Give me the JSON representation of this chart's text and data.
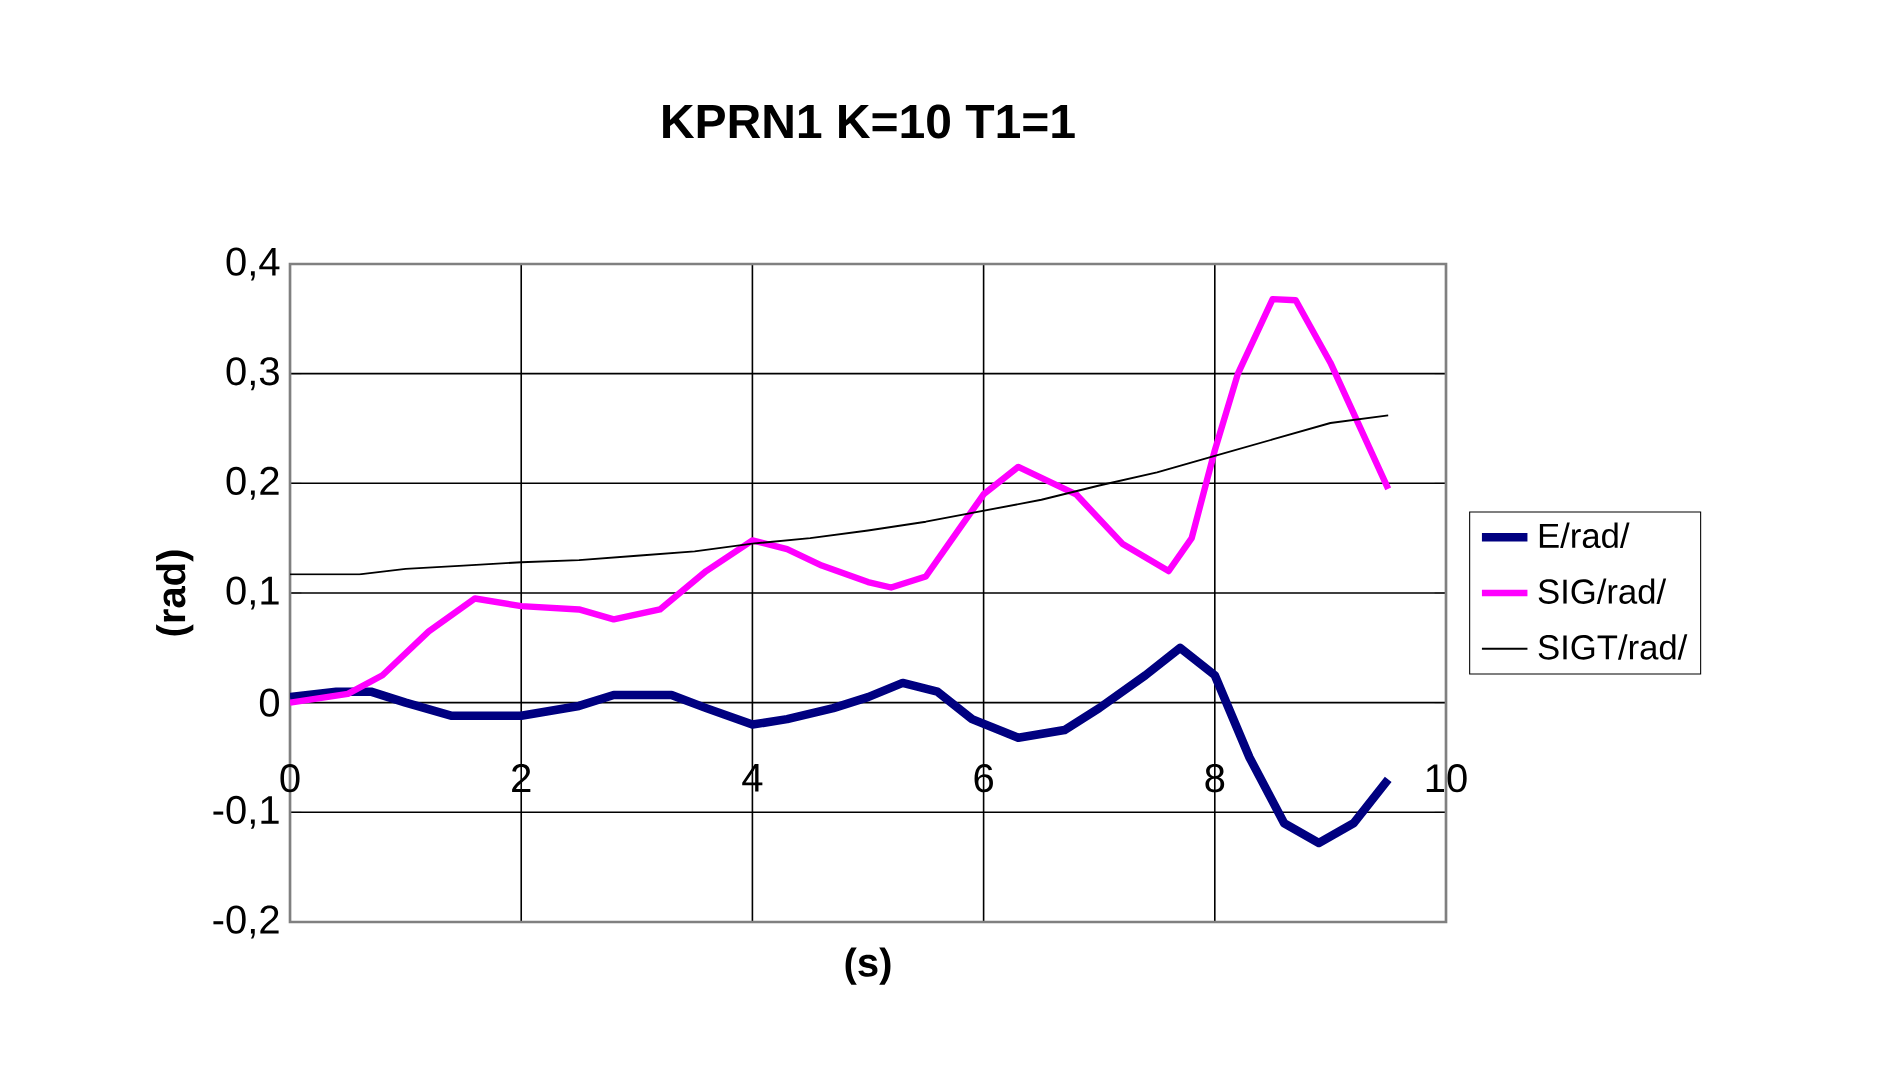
{
  "chart_data": {
    "type": "line",
    "title": "KPRN1 K=10 T1=1",
    "xlabel": "(s)",
    "ylabel": "(rad)",
    "xlim": [
      0,
      10
    ],
    "ylim": [
      -0.2,
      0.4
    ],
    "xticks": [
      0,
      2,
      4,
      6,
      8,
      10
    ],
    "yticks": [
      {
        "value": -0.2,
        "label": "-0,2"
      },
      {
        "value": -0.1,
        "label": "-0,1"
      },
      0,
      {
        "value": 0.1,
        "label": "0,1"
      },
      {
        "value": 0.2,
        "label": "0,2"
      },
      {
        "value": 0.3,
        "label": "0,3"
      },
      {
        "value": 0.4,
        "label": "0,4"
      }
    ],
    "grid": true,
    "legend": "right",
    "marker": "none",
    "line_style": "solid",
    "series": [
      {
        "name": "E/rad/",
        "color": "#000080",
        "x": [
          0,
          0.4,
          0.7,
          1.0,
          1.4,
          2.0,
          2.5,
          2.8,
          3.3,
          3.6,
          4.0,
          4.3,
          4.7,
          5.0,
          5.3,
          5.6,
          5.9,
          6.3,
          6.7,
          7.0,
          7.4,
          7.7,
          8.0,
          8.3,
          8.6,
          8.9,
          9.2,
          9.5
        ],
        "values": [
          0.005,
          0.01,
          0.01,
          0,
          -0.012,
          -0.012,
          -0.003,
          0.007,
          0.007,
          -0.005,
          -0.02,
          -0.015,
          -0.005,
          0.005,
          0.018,
          0.01,
          -0.015,
          -0.032,
          -0.025,
          -0.005,
          0.025,
          0.05,
          0.025,
          -0.05,
          -0.11,
          -0.128,
          -0.11,
          -0.07
        ]
      },
      {
        "name": "SIG/rad/",
        "color": "#ff00ff",
        "x": [
          0,
          0.5,
          0.8,
          1.2,
          1.6,
          2.0,
          2.5,
          2.8,
          3.2,
          3.6,
          4.0,
          4.3,
          4.6,
          5.0,
          5.2,
          5.5,
          5.8,
          6.0,
          6.3,
          6.8,
          7.2,
          7.6,
          7.8,
          8.0,
          8.2,
          8.5,
          8.7,
          9.0,
          9.5
        ],
        "values": [
          0,
          0.008,
          0.025,
          0.065,
          0.095,
          0.088,
          0.085,
          0.076,
          0.085,
          0.12,
          0.148,
          0.14,
          0.125,
          0.11,
          0.105,
          0.115,
          0.16,
          0.19,
          0.215,
          0.19,
          0.145,
          0.12,
          0.15,
          0.23,
          0.3,
          0.368,
          0.367,
          0.31,
          0.195
        ]
      },
      {
        "name": "SIGT/rad/",
        "color": "#000000",
        "x": [
          0,
          0.6,
          1.0,
          1.5,
          2.0,
          2.5,
          3.0,
          3.5,
          4.0,
          4.5,
          5.0,
          5.5,
          6.0,
          6.5,
          7.0,
          7.5,
          8.0,
          8.5,
          9.0,
          9.5
        ],
        "values": [
          0.117,
          0.117,
          0.122,
          0.125,
          0.128,
          0.13,
          0.134,
          0.138,
          0.145,
          0.15,
          0.157,
          0.165,
          0.175,
          0.185,
          0.198,
          0.21,
          0.225,
          0.24,
          0.255,
          0.262
        ]
      }
    ]
  }
}
